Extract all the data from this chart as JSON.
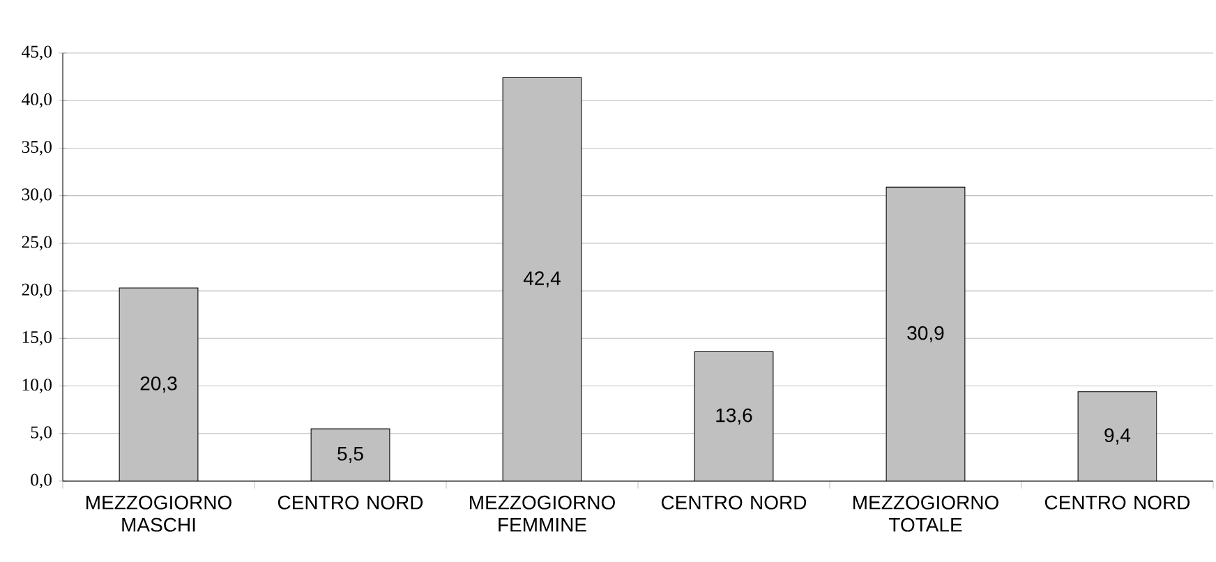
{
  "chart_data": {
    "type": "bar",
    "categories": [
      "MEZZOGIORNO MASCHI",
      "CENTRO NORD",
      "MEZZOGIORNO FEMMINE",
      "CENTRO NORD",
      "MEZZOGIORNO TOTALE",
      "CENTRO NORD"
    ],
    "values": [
      20.3,
      5.5,
      42.4,
      13.6,
      30.9,
      9.4
    ],
    "value_labels": [
      "20,3",
      "5,5",
      "42,4",
      "13,6",
      "30,9",
      "9,4"
    ],
    "color": "#c0c0c0",
    "ylim": [
      0,
      45
    ],
    "yticks": [
      {
        "value": 0,
        "label": "0,0"
      },
      {
        "value": 5,
        "label": "5,0"
      },
      {
        "value": 10,
        "label": "10,0"
      },
      {
        "value": 15,
        "label": "15,0"
      },
      {
        "value": 20,
        "label": "20,0"
      },
      {
        "value": 25,
        "label": "25,0"
      },
      {
        "value": 30,
        "label": "30,0"
      },
      {
        "value": 35,
        "label": "35,0"
      },
      {
        "value": 40,
        "label": "40,0"
      },
      {
        "value": 45,
        "label": "45,0"
      }
    ],
    "grid": "y"
  }
}
